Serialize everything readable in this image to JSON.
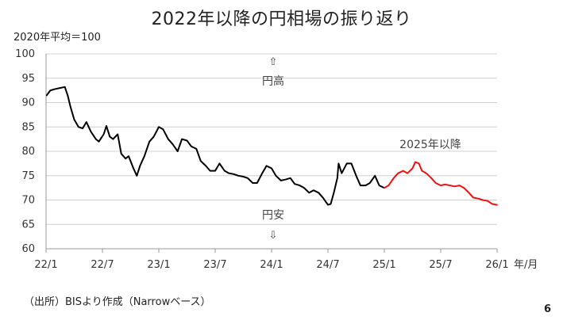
{
  "chart_data": {
    "type": "line",
    "title": "2022年以降の円相場の振り返り",
    "ylabel": "2020年平均＝100",
    "xlabel": "年/月",
    "ylim": [
      60,
      100
    ],
    "yticks": [
      60,
      65,
      70,
      75,
      80,
      85,
      90,
      95,
      100
    ],
    "xlim": [
      "2022-01",
      "2026-01"
    ],
    "xticks": [
      "22/1",
      "22/7",
      "23/1",
      "23/7",
      "24/1",
      "24/7",
      "25/1",
      "25/7",
      "26/1"
    ],
    "grid": "horizontal",
    "annotations": {
      "up_arrow": "⇧",
      "up_text": "円高",
      "down_text": "円安",
      "down_arrow": "⇩",
      "highlight_label": "2025年以降"
    },
    "series": [
      {
        "color": "#000000",
        "x": [
          "2022-01-03",
          "2022-01-15",
          "2022-02-01",
          "2022-02-15",
          "2022-03-01",
          "2022-03-10",
          "2022-03-20",
          "2022-04-01",
          "2022-04-15",
          "2022-04-28",
          "2022-05-10",
          "2022-05-25",
          "2022-06-10",
          "2022-06-20",
          "2022-07-05",
          "2022-07-14",
          "2022-07-25",
          "2022-08-05",
          "2022-08-20",
          "2022-09-01",
          "2022-09-15",
          "2022-09-25",
          "2022-10-10",
          "2022-10-21",
          "2022-11-01",
          "2022-11-15",
          "2022-12-01",
          "2022-12-15",
          "2023-01-01",
          "2023-01-15",
          "2023-02-01",
          "2023-02-15",
          "2023-03-01",
          "2023-03-15",
          "2023-04-01",
          "2023-04-15",
          "2023-05-01",
          "2023-05-15",
          "2023-06-01",
          "2023-06-15",
          "2023-07-01",
          "2023-07-15",
          "2023-08-01",
          "2023-08-15",
          "2023-09-01",
          "2023-09-15",
          "2023-10-01",
          "2023-10-15",
          "2023-11-01",
          "2023-11-15",
          "2023-12-01",
          "2023-12-15",
          "2024-01-01",
          "2024-01-15",
          "2024-02-01",
          "2024-02-15",
          "2024-03-01",
          "2024-03-15",
          "2024-04-01",
          "2024-04-15",
          "2024-05-01",
          "2024-05-15",
          "2024-06-01",
          "2024-06-15",
          "2024-07-01",
          "2024-07-10",
          "2024-07-20",
          "2024-08-01",
          "2024-08-05",
          "2024-08-15",
          "2024-09-01",
          "2024-09-16",
          "2024-10-01",
          "2024-10-15",
          "2024-11-01",
          "2024-11-15",
          "2024-12-01",
          "2024-12-15",
          "2024-12-31"
        ],
        "values": [
          91.5,
          92.5,
          92.8,
          93.0,
          93.2,
          91.5,
          89.0,
          86.5,
          85.0,
          84.7,
          86.0,
          84.0,
          82.5,
          82.0,
          83.5,
          85.2,
          83.0,
          82.5,
          83.5,
          79.5,
          78.5,
          79.0,
          76.5,
          75.0,
          77.0,
          79.0,
          82.0,
          83.0,
          85.0,
          84.5,
          82.5,
          81.5,
          80.0,
          82.5,
          82.2,
          81.0,
          80.5,
          78.0,
          77.0,
          76.0,
          76.0,
          77.5,
          76.0,
          75.5,
          75.3,
          75.0,
          74.8,
          74.5,
          73.5,
          73.5,
          75.5,
          77.0,
          76.5,
          75.0,
          74.0,
          74.2,
          74.5,
          73.3,
          73.0,
          72.5,
          71.5,
          72.0,
          71.5,
          70.5,
          69.0,
          69.2,
          71.5,
          74.5,
          77.5,
          75.5,
          77.5,
          77.5,
          75.0,
          73.0,
          73.0,
          73.5,
          75.0,
          73.0,
          72.5
        ]
      },
      {
        "color": "#ee1111",
        "x": [
          "2025-01-01",
          "2025-01-15",
          "2025-02-01",
          "2025-02-15",
          "2025-03-01",
          "2025-03-15",
          "2025-04-01",
          "2025-04-10",
          "2025-04-22",
          "2025-05-01",
          "2025-05-15",
          "2025-06-01",
          "2025-06-15",
          "2025-07-01",
          "2025-07-15",
          "2025-08-01",
          "2025-08-15",
          "2025-09-01",
          "2025-09-15",
          "2025-10-01",
          "2025-10-15",
          "2025-11-01",
          "2025-11-15",
          "2025-12-01",
          "2025-12-15",
          "2025-12-31"
        ],
        "values": [
          72.5,
          73.0,
          74.5,
          75.5,
          76.0,
          75.5,
          76.5,
          77.8,
          77.5,
          76.0,
          75.5,
          74.5,
          73.5,
          73.0,
          73.2,
          73.0,
          72.8,
          73.0,
          72.5,
          71.5,
          70.5,
          70.3,
          70.0,
          69.8,
          69.2,
          69.0
        ]
      }
    ]
  },
  "header": {
    "title": "2022年以降の円相場の振り返り",
    "unit": "2020年平均＝100"
  },
  "footer": {
    "source": "（出所）BISより作成（Narrowベース）",
    "page": "6"
  }
}
